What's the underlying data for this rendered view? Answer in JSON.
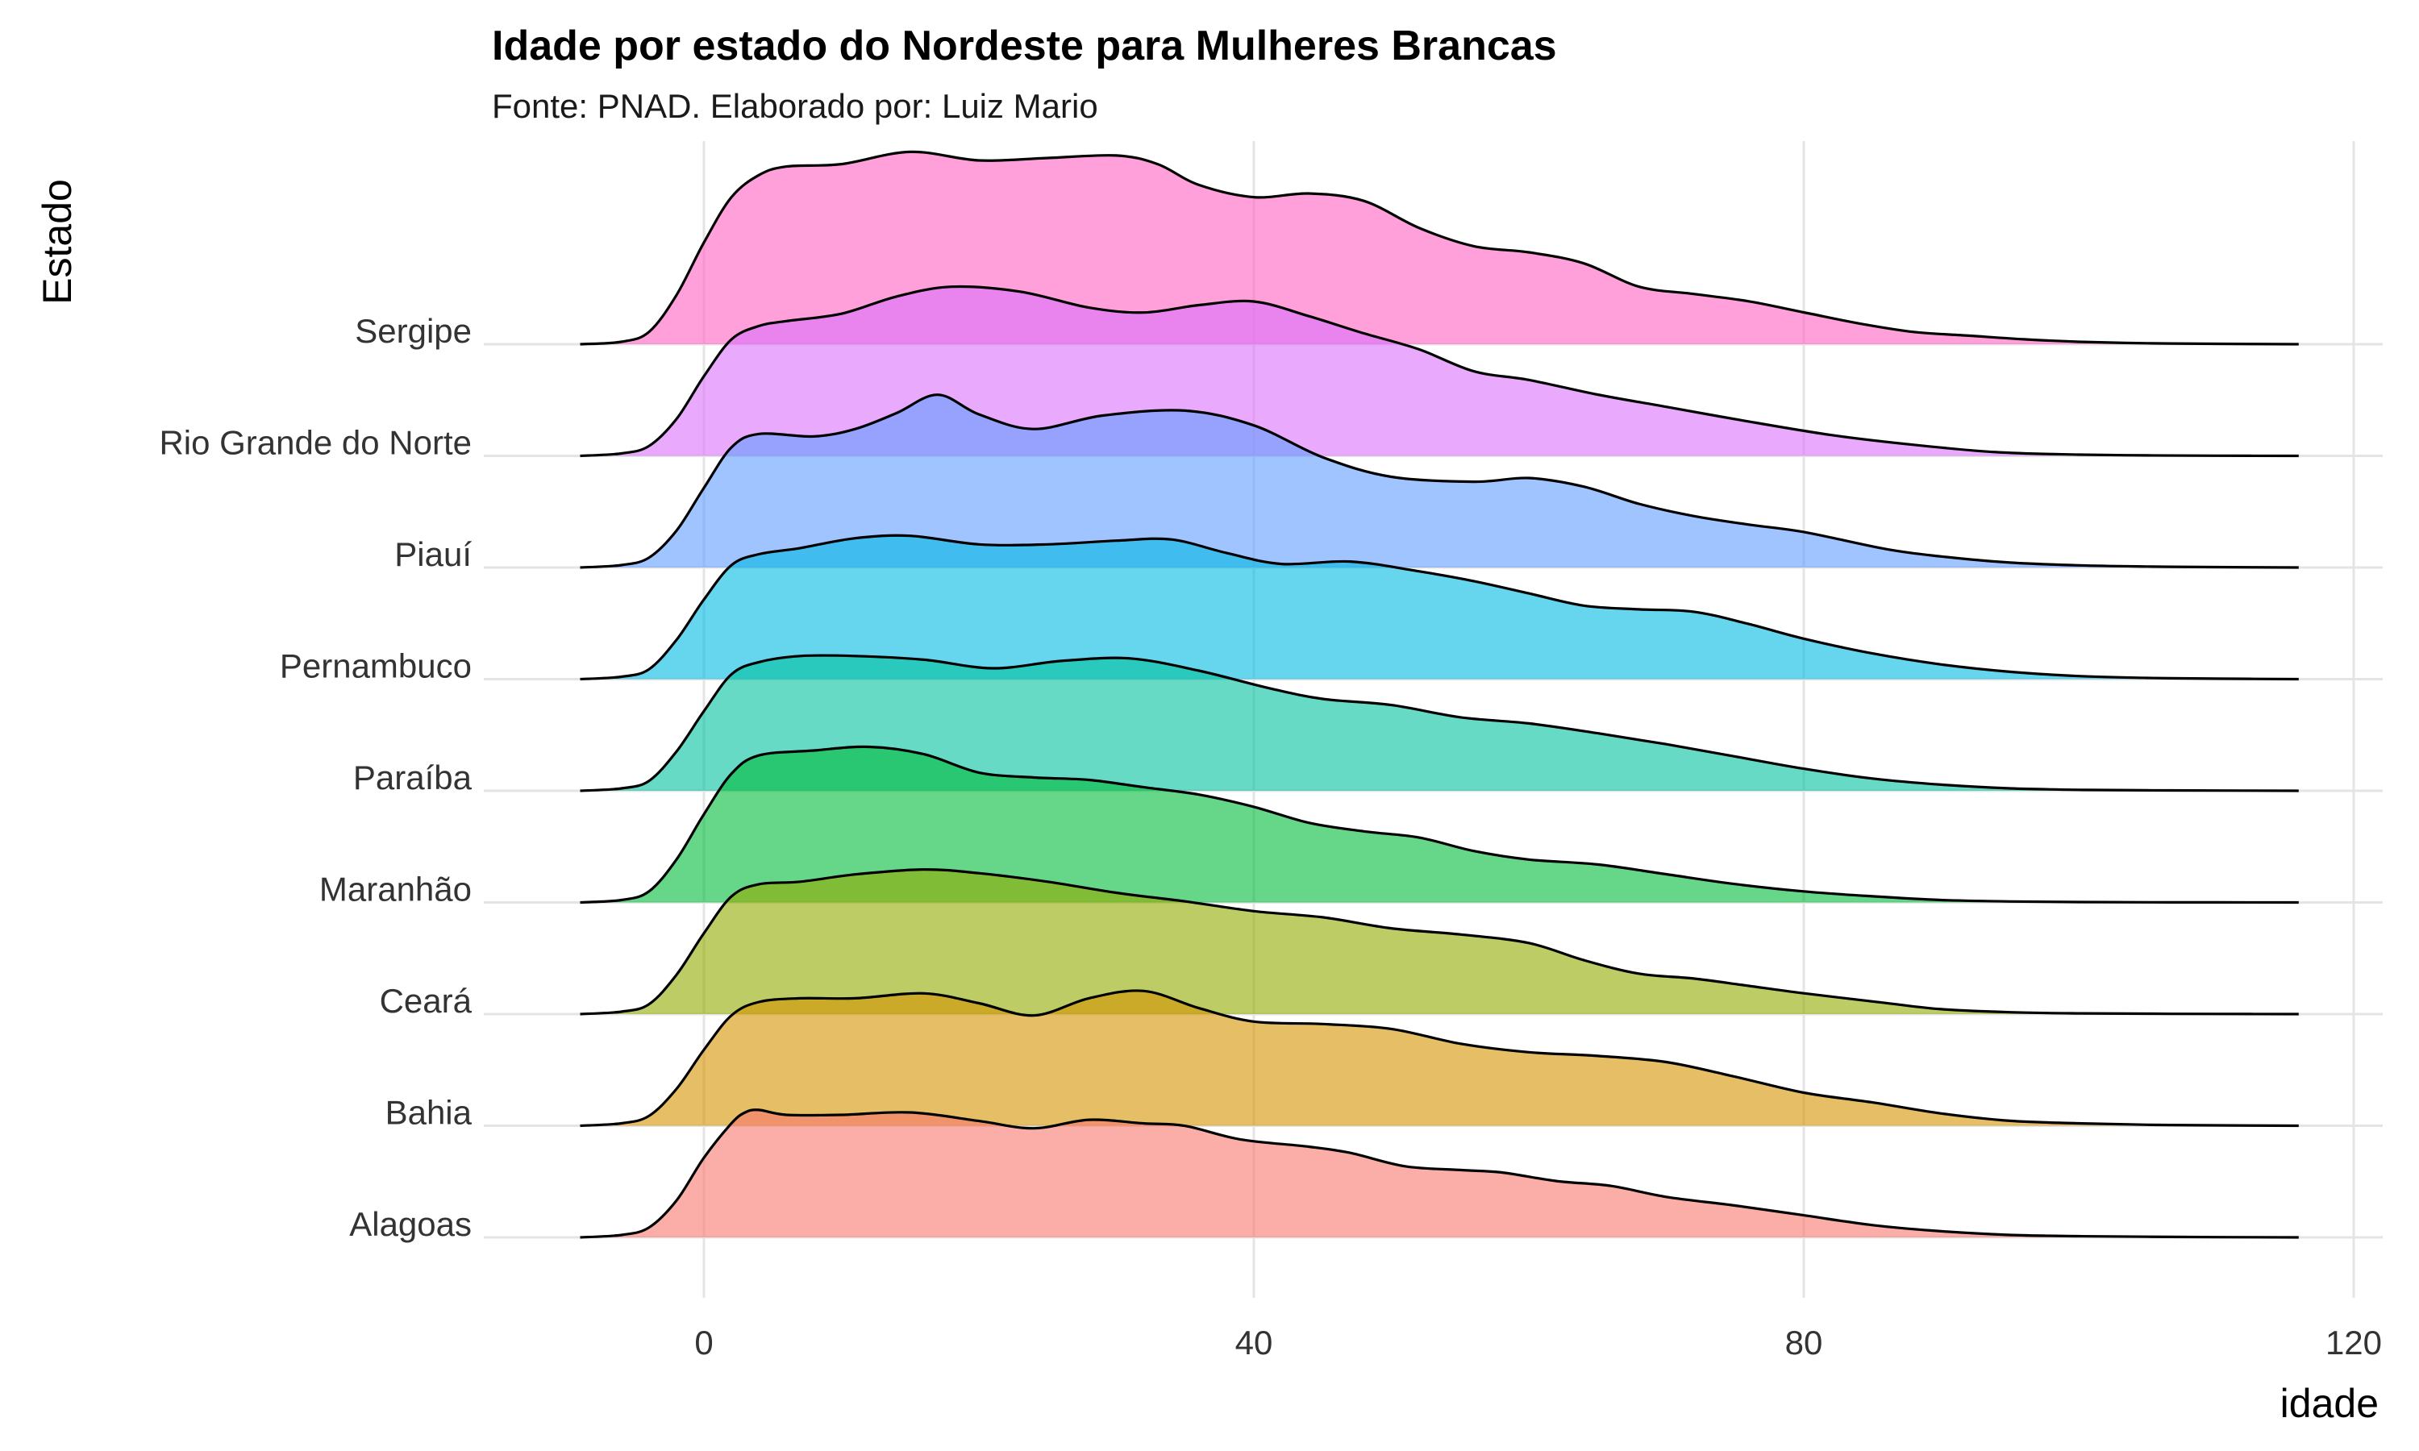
{
  "chart_data": {
    "type": "area",
    "subtype": "ridgeline",
    "title": "Idade por estado do Nordeste para Mulheres Brancas",
    "subtitle": "Fonte: PNAD. Elaborado por: Luiz Mario",
    "xlabel": "idade",
    "ylabel": "Estado",
    "xlim": [
      -9,
      118
    ],
    "x_ticks": [
      0,
      40,
      80,
      120
    ],
    "grid": true,
    "fill_opacity": 0.6,
    "categories": [
      "Alagoas",
      "Bahia",
      "Ceará",
      "Maranhão",
      "Paraíba",
      "Pernambuco",
      "Piauí",
      "Rio Grande do Norte",
      "Sergipe"
    ],
    "series": [
      {
        "name": "Alagoas",
        "color": "#F8766D",
        "x": [
          -9,
          -6,
          -4,
          -2,
          0,
          2,
          3,
          4,
          6,
          10,
          15,
          20,
          24,
          28,
          32,
          35,
          39,
          44,
          47,
          51,
          55,
          58,
          62,
          66,
          70,
          75,
          80,
          85,
          90,
          95,
          100,
          105,
          110,
          116
        ],
        "y": [
          0,
          0.02,
          0.08,
          0.3,
          0.65,
          0.93,
          1.02,
          1.04,
          1.0,
          1.0,
          1.02,
          0.95,
          0.89,
          0.96,
          0.93,
          0.91,
          0.8,
          0.74,
          0.69,
          0.58,
          0.55,
          0.53,
          0.46,
          0.42,
          0.33,
          0.26,
          0.18,
          0.1,
          0.05,
          0.02,
          0.01,
          0.005,
          0.002,
          0
        ]
      },
      {
        "name": "Bahia",
        "color": "#D39200",
        "x": [
          -9,
          -6,
          -4,
          -2,
          0,
          2,
          4,
          7,
          11,
          16,
          20,
          24,
          28,
          32,
          36,
          40,
          45,
          50,
          55,
          60,
          65,
          70,
          75,
          80,
          85,
          90,
          95,
          100,
          105,
          110,
          116
        ],
        "y": [
          0,
          0.02,
          0.08,
          0.3,
          0.62,
          0.9,
          1.01,
          1.04,
          1.04,
          1.08,
          1.0,
          0.9,
          1.04,
          1.1,
          0.96,
          0.85,
          0.83,
          0.79,
          0.67,
          0.6,
          0.57,
          0.52,
          0.4,
          0.27,
          0.19,
          0.1,
          0.04,
          0.02,
          0.008,
          0.003,
          0
        ]
      },
      {
        "name": "Ceará",
        "color": "#93AA00",
        "x": [
          -9,
          -6,
          -4,
          -2,
          0,
          2,
          4,
          7,
          11,
          16,
          20,
          25,
          30,
          35,
          40,
          45,
          50,
          55,
          60,
          64,
          68,
          72,
          76,
          80,
          86,
          90,
          95,
          100,
          105,
          110,
          116
        ],
        "y": [
          0,
          0.02,
          0.08,
          0.32,
          0.66,
          0.96,
          1.06,
          1.08,
          1.14,
          1.18,
          1.15,
          1.08,
          0.99,
          0.92,
          0.84,
          0.79,
          0.7,
          0.65,
          0.58,
          0.44,
          0.33,
          0.29,
          0.23,
          0.17,
          0.09,
          0.04,
          0.015,
          0.006,
          0.003,
          0.001,
          0
        ]
      },
      {
        "name": "Maranhão",
        "color": "#00BA38",
        "x": [
          -9,
          -6,
          -4,
          -2,
          0,
          2,
          4,
          8,
          12,
          16,
          20,
          24,
          28,
          32,
          36,
          40,
          44,
          48,
          52,
          56,
          60,
          65,
          70,
          75,
          80,
          85,
          90,
          95,
          100,
          105,
          110,
          116
        ],
        "y": [
          0,
          0.02,
          0.09,
          0.35,
          0.72,
          1.05,
          1.2,
          1.24,
          1.27,
          1.21,
          1.06,
          1.02,
          1.0,
          0.94,
          0.88,
          0.78,
          0.65,
          0.58,
          0.53,
          0.42,
          0.35,
          0.31,
          0.23,
          0.15,
          0.09,
          0.05,
          0.02,
          0.008,
          0.003,
          0.001,
          0.0005,
          0
        ]
      },
      {
        "name": "Paraíba",
        "color": "#00C19F",
        "x": [
          -9,
          -6,
          -4,
          -2,
          0,
          2,
          4,
          7,
          11,
          16,
          21,
          26,
          31,
          36,
          41,
          45,
          50,
          55,
          60,
          65,
          70,
          75,
          80,
          85,
          90,
          95,
          100,
          105,
          110,
          116
        ],
        "y": [
          0,
          0.02,
          0.08,
          0.32,
          0.65,
          0.95,
          1.05,
          1.1,
          1.1,
          1.07,
          1.0,
          1.06,
          1.08,
          0.98,
          0.84,
          0.75,
          0.7,
          0.6,
          0.55,
          0.47,
          0.38,
          0.28,
          0.18,
          0.1,
          0.05,
          0.02,
          0.008,
          0.004,
          0.002,
          0
        ]
      },
      {
        "name": "Pernambuco",
        "color": "#00B9E3",
        "x": [
          -9,
          -6,
          -4,
          -2,
          0,
          2,
          4,
          7,
          11,
          15,
          20,
          25,
          30,
          34,
          38,
          42,
          47,
          52,
          56,
          60,
          64,
          68,
          72,
          76,
          80,
          85,
          90,
          95,
          100,
          105,
          110,
          116
        ],
        "y": [
          0,
          0.02,
          0.08,
          0.32,
          0.65,
          0.93,
          1.02,
          1.07,
          1.15,
          1.17,
          1.1,
          1.1,
          1.13,
          1.14,
          1.03,
          0.94,
          0.96,
          0.88,
          0.8,
          0.7,
          0.6,
          0.57,
          0.55,
          0.45,
          0.33,
          0.21,
          0.12,
          0.06,
          0.025,
          0.01,
          0.004,
          0
        ]
      },
      {
        "name": "Piauí",
        "color": "#619CFF",
        "x": [
          -9,
          -6,
          -4,
          -2,
          0,
          2,
          4,
          8,
          11,
          14,
          17,
          20,
          24,
          29,
          35,
          40,
          45,
          50,
          56,
          60,
          64,
          68,
          72,
          76,
          80,
          86,
          90,
          95,
          100,
          105,
          110,
          116
        ],
        "y": [
          0,
          0.02,
          0.08,
          0.3,
          0.65,
          0.98,
          1.09,
          1.07,
          1.13,
          1.26,
          1.41,
          1.25,
          1.13,
          1.24,
          1.28,
          1.16,
          0.9,
          0.74,
          0.7,
          0.73,
          0.66,
          0.52,
          0.42,
          0.35,
          0.29,
          0.15,
          0.09,
          0.04,
          0.018,
          0.008,
          0.003,
          0
        ]
      },
      {
        "name": "Rio Grande do Norte",
        "color": "#DB72FB",
        "x": [
          -9,
          -6,
          -4,
          -2,
          0,
          2,
          4,
          6,
          10,
          14,
          18,
          23,
          28,
          32,
          36,
          40,
          44,
          48,
          52,
          56,
          60,
          65,
          70,
          76,
          82,
          88,
          94,
          100,
          105,
          110,
          116
        ],
        "y": [
          0,
          0.02,
          0.08,
          0.3,
          0.65,
          0.95,
          1.06,
          1.1,
          1.16,
          1.3,
          1.38,
          1.34,
          1.21,
          1.17,
          1.23,
          1.26,
          1.14,
          1.0,
          0.87,
          0.69,
          0.62,
          0.5,
          0.4,
          0.28,
          0.17,
          0.09,
          0.03,
          0.01,
          0.004,
          0.001,
          0
        ]
      },
      {
        "name": "Sergipe",
        "color": "#FF61C3",
        "x": [
          -9,
          -6,
          -4,
          -2,
          0,
          2,
          4,
          6,
          10,
          15,
          20,
          25,
          30,
          33,
          36,
          40,
          44,
          48,
          52,
          56,
          60,
          64,
          68,
          72,
          76,
          80,
          84,
          88,
          92,
          96,
          100,
          105,
          110,
          116
        ],
        "y": [
          0,
          0.02,
          0.1,
          0.4,
          0.83,
          1.2,
          1.38,
          1.45,
          1.47,
          1.57,
          1.5,
          1.52,
          1.54,
          1.47,
          1.3,
          1.2,
          1.23,
          1.17,
          0.95,
          0.8,
          0.75,
          0.66,
          0.47,
          0.41,
          0.35,
          0.26,
          0.17,
          0.1,
          0.07,
          0.04,
          0.02,
          0.008,
          0.003,
          0
        ]
      }
    ]
  }
}
